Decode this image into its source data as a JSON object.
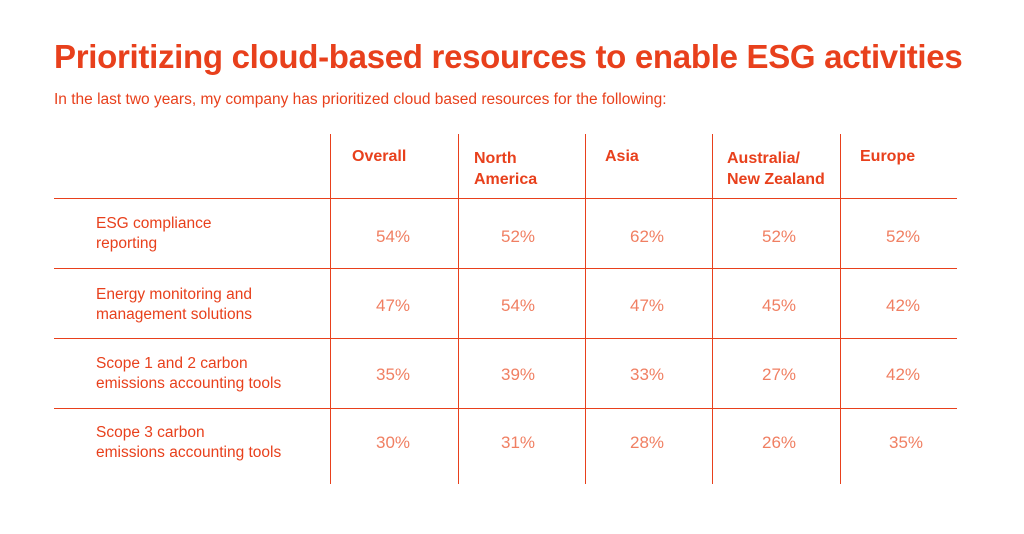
{
  "title": "Prioritizing cloud-based resources to enable ESG activities",
  "subtitle": "In the last two years, my company has prioritized cloud based resources for the following:",
  "colors": {
    "accent": "#E8401C",
    "value": "#F07F62",
    "background": "#FFFFFF"
  },
  "chart_data": {
    "type": "table",
    "title": "Prioritizing cloud-based resources to enable ESG activities",
    "subtitle": "In the last two years, my company has prioritized cloud based resources for the following:",
    "columns": [
      "Overall",
      "North\nAmerica",
      "Asia",
      "Australia/\nNew Zealand",
      "Europe"
    ],
    "rows": [
      {
        "label": "ESG compliance\nreporting",
        "values": [
          "54%",
          "52%",
          "62%",
          "52%",
          "52%"
        ]
      },
      {
        "label": "Energy monitoring and\nmanagement solutions",
        "values": [
          "47%",
          "54%",
          "47%",
          "45%",
          "42%"
        ]
      },
      {
        "label": "Scope 1 and 2 carbon\nemissions accounting tools",
        "values": [
          "35%",
          "39%",
          "33%",
          "27%",
          "42%"
        ]
      },
      {
        "label": "Scope 3 carbon\nemissions accounting tools",
        "values": [
          "30%",
          "31%",
          "28%",
          "26%",
          "35%"
        ]
      }
    ]
  }
}
